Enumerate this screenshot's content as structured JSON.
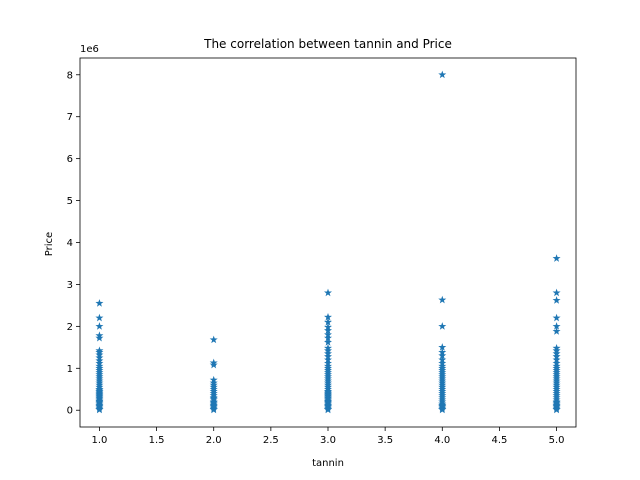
{
  "chart_data": {
    "type": "scatter",
    "title": "The correlation between tannin and Price",
    "xlabel": "tannin",
    "ylabel": "Price",
    "y_offset_label": "1e6",
    "xlim": [
      0.83,
      5.17
    ],
    "ylim": [
      -0.4,
      8.4
    ],
    "xticks": [
      "1.0",
      "1.5",
      "2.0",
      "2.5",
      "3.0",
      "3.5",
      "4.0",
      "4.5",
      "5.0"
    ],
    "yticks": [
      "0",
      "1",
      "2",
      "3",
      "4",
      "5",
      "6",
      "7",
      "8"
    ],
    "grid": false,
    "marker": "star",
    "marker_color": "#1f77b4",
    "series": [
      {
        "x": [
          1,
          1,
          1,
          1,
          1,
          1,
          1,
          1,
          1,
          1,
          1,
          1,
          1,
          1,
          1,
          1,
          1,
          1,
          1,
          1,
          1,
          1,
          1,
          1,
          1,
          1,
          1,
          1,
          1,
          1,
          1,
          1,
          1,
          1,
          1,
          1,
          1,
          1,
          1,
          1,
          1,
          1,
          1
        ],
        "y": [
          2.55,
          2.2,
          2.0,
          1.78,
          1.72,
          1.42,
          1.38,
          1.32,
          1.25,
          1.18,
          1.12,
          1.05,
          1.0,
          0.95,
          0.9,
          0.85,
          0.8,
          0.75,
          0.7,
          0.65,
          0.6,
          0.55,
          0.5,
          0.45,
          0.4,
          0.35,
          0.3,
          0.25,
          0.2,
          0.15,
          0.1,
          0.05,
          0.02,
          0.08,
          0.12,
          0.18,
          0.22,
          0.28,
          0.33,
          0.38,
          0.43,
          0.48,
          0.01
        ]
      },
      {
        "x": [
          2,
          2,
          2,
          2,
          2,
          2,
          2,
          2,
          2,
          2,
          2,
          2,
          2,
          2,
          2,
          2,
          2,
          2,
          2,
          2,
          2,
          2,
          2
        ],
        "y": [
          1.68,
          1.13,
          1.08,
          0.72,
          0.65,
          0.6,
          0.55,
          0.5,
          0.45,
          0.4,
          0.35,
          0.3,
          0.25,
          0.2,
          0.15,
          0.1,
          0.05,
          0.02,
          0.08,
          0.12,
          0.18,
          0.28,
          0.01
        ]
      },
      {
        "x": [
          3,
          3,
          3,
          3,
          3,
          3,
          3,
          3,
          3,
          3,
          3,
          3,
          3,
          3,
          3,
          3,
          3,
          3,
          3,
          3,
          3,
          3,
          3,
          3,
          3,
          3,
          3,
          3,
          3,
          3,
          3,
          3,
          3,
          3,
          3,
          3,
          3,
          3,
          3,
          3,
          3,
          3,
          3,
          3,
          3
        ],
        "y": [
          2.8,
          2.22,
          2.1,
          1.98,
          1.9,
          1.8,
          1.72,
          1.62,
          1.48,
          1.42,
          1.35,
          1.28,
          1.2,
          1.12,
          1.05,
          1.0,
          0.95,
          0.9,
          0.85,
          0.8,
          0.75,
          0.7,
          0.65,
          0.6,
          0.55,
          0.5,
          0.45,
          0.4,
          0.35,
          0.3,
          0.25,
          0.2,
          0.15,
          0.1,
          0.05,
          0.02,
          0.08,
          0.12,
          0.18,
          0.22,
          0.28,
          0.33,
          0.38,
          0.43,
          0.01
        ]
      },
      {
        "x": [
          4,
          4,
          4,
          4,
          4,
          4,
          4,
          4,
          4,
          4,
          4,
          4,
          4,
          4,
          4,
          4,
          4,
          4,
          4,
          4,
          4,
          4,
          4,
          4,
          4,
          4,
          4,
          4,
          4,
          4,
          4,
          4,
          4
        ],
        "y": [
          8.0,
          2.63,
          2.0,
          1.5,
          1.38,
          1.3,
          1.2,
          1.12,
          1.05,
          1.0,
          0.95,
          0.9,
          0.85,
          0.8,
          0.75,
          0.7,
          0.65,
          0.6,
          0.55,
          0.5,
          0.45,
          0.4,
          0.35,
          0.3,
          0.25,
          0.2,
          0.15,
          0.1,
          0.05,
          0.02,
          0.08,
          0.12,
          0.01
        ]
      },
      {
        "x": [
          5,
          5,
          5,
          5,
          5,
          5,
          5,
          5,
          5,
          5,
          5,
          5,
          5,
          5,
          5,
          5,
          5,
          5,
          5,
          5,
          5,
          5,
          5,
          5,
          5,
          5,
          5,
          5,
          5,
          5,
          5,
          5,
          5,
          5,
          5,
          5,
          5,
          5
        ],
        "y": [
          3.62,
          2.8,
          2.62,
          2.2,
          2.0,
          1.88,
          1.48,
          1.42,
          1.35,
          1.28,
          1.2,
          1.12,
          1.05,
          1.0,
          0.95,
          0.9,
          0.85,
          0.8,
          0.75,
          0.7,
          0.65,
          0.6,
          0.55,
          0.5,
          0.45,
          0.4,
          0.35,
          0.3,
          0.25,
          0.2,
          0.15,
          0.1,
          0.05,
          0.02,
          0.08,
          0.12,
          0.18,
          0.01
        ]
      }
    ]
  }
}
